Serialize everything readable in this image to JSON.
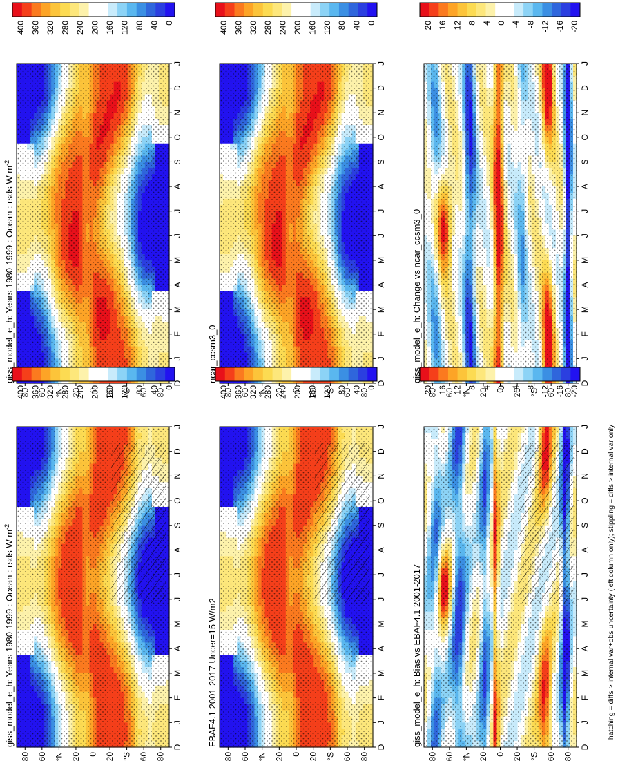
{
  "footnote": "hatching = diffs > internal var+obs uncertainty (left column only); stippling = diffs > internal var only",
  "colors": {
    "abs_scale": [
      "#e8101a",
      "#f53f1a",
      "#fb7a1f",
      "#fda426",
      "#fcc43a",
      "#fcdb52",
      "#fde77b",
      "#fdf2ab",
      "#ffffff",
      "#ffffff",
      "#c8ebfb",
      "#8cd3f6",
      "#5ab7ef",
      "#3b8fe3",
      "#2f66dc",
      "#2b3fe0",
      "#2212f0"
    ],
    "diff_scale": [
      "#e8101a",
      "#f53f1a",
      "#fb7a1f",
      "#fda426",
      "#fcc43a",
      "#fcdb52",
      "#fde77b",
      "#fdf2ab",
      "#ffffff",
      "#ffffff",
      "#c8ebfb",
      "#8cd3f6",
      "#5ab7ef",
      "#3b8fe3",
      "#2f66dc",
      "#2b3fe0",
      "#2212f0"
    ]
  },
  "chart_data": [
    {
      "type": "heatmap",
      "panel": "top-left",
      "title": "giss_model_e_h: Years 1980-1999 : Ocean : rsds W m",
      "title_sup": "-2",
      "x_axis": "latitude",
      "x_tick_labels": [
        "80",
        "60",
        "°N",
        "20",
        "0",
        "20",
        "°S",
        "60",
        "80"
      ],
      "y_axis": "month",
      "y_tick_labels": [
        "D",
        "J",
        "F",
        "M",
        "A",
        "M",
        "J",
        "J",
        "A",
        "S",
        "O",
        "N",
        "D",
        "J"
      ],
      "colorbar_labels": [
        "400",
        "360",
        "320",
        "280",
        "240",
        "200",
        "160",
        "120",
        "80",
        "40",
        "0"
      ],
      "zlim": [
        0,
        420
      ],
      "hatching": true,
      "stippling": true
    },
    {
      "type": "heatmap",
      "panel": "top-right",
      "title": "giss_model_e_h: Years 1980-1999 : Ocean : rsds W m",
      "title_sup": "-2",
      "x_axis": "latitude",
      "x_tick_labels": [
        "80",
        "60",
        "°N",
        "20",
        "0",
        "20",
        "°S",
        "60",
        "80"
      ],
      "y_axis": "month",
      "y_tick_labels": [
        "D",
        "J",
        "F",
        "M",
        "A",
        "M",
        "J",
        "J",
        "A",
        "S",
        "O",
        "N",
        "D",
        "J"
      ],
      "colorbar_labels": [
        "400",
        "360",
        "320",
        "280",
        "240",
        "200",
        "160",
        "120",
        "80",
        "40",
        "0"
      ],
      "zlim": [
        0,
        420
      ],
      "hatching": false,
      "stippling": true
    },
    {
      "type": "heatmap",
      "panel": "middle-left",
      "title": "EBAF4.1 2001-2017 Uncer=15 W/m2",
      "x_axis": "latitude",
      "x_tick_labels": [
        "80",
        "60",
        "°N",
        "20",
        "0",
        "20",
        "°S",
        "60",
        "80"
      ],
      "y_axis": "month",
      "y_tick_labels": [
        "D",
        "J",
        "F",
        "M",
        "A",
        "M",
        "J",
        "J",
        "A",
        "S",
        "O",
        "N",
        "D",
        "J"
      ],
      "colorbar_labels": [
        "400",
        "360",
        "320",
        "280",
        "240",
        "200",
        "160",
        "120",
        "80",
        "40",
        "0"
      ],
      "zlim": [
        0,
        420
      ],
      "hatching": true,
      "stippling": true
    },
    {
      "type": "heatmap",
      "panel": "middle-right",
      "title": "ncar_ccsm3_0",
      "x_axis": "latitude",
      "x_tick_labels": [
        "80",
        "60",
        "°N",
        "20",
        "0",
        "20",
        "°S",
        "60",
        "80"
      ],
      "y_axis": "month",
      "y_tick_labels": [
        "D",
        "J",
        "F",
        "M",
        "A",
        "M",
        "J",
        "J",
        "A",
        "S",
        "O",
        "N",
        "D",
        "J"
      ],
      "colorbar_labels": [
        "400",
        "360",
        "320",
        "280",
        "240",
        "200",
        "160",
        "120",
        "80",
        "40",
        "0"
      ],
      "zlim": [
        0,
        420
      ],
      "hatching": false,
      "stippling": true
    },
    {
      "type": "heatmap",
      "panel": "bottom-left",
      "title": "giss_model_e_h: Bias vs EBAF4.1 2001-2017",
      "x_axis": "latitude",
      "x_tick_labels": [
        "80",
        "60",
        "°N",
        "20",
        "0",
        "20",
        "°S",
        "60",
        "80"
      ],
      "y_axis": "month",
      "y_tick_labels": [
        "D",
        "J",
        "F",
        "M",
        "A",
        "M",
        "J",
        "J",
        "A",
        "S",
        "O",
        "N",
        "D",
        "J"
      ],
      "colorbar_labels": [
        "20",
        "16",
        "12",
        "8",
        "4",
        "0",
        "-4",
        "-8",
        "-12",
        "-16",
        "-20"
      ],
      "zlim": [
        -22,
        22
      ],
      "hatching": true,
      "stippling": true
    },
    {
      "type": "heatmap",
      "panel": "bottom-right",
      "title": "giss_model_e_h: Change vs ncar_ccsm3_0",
      "x_axis": "latitude",
      "x_tick_labels": [
        "80",
        "60",
        "°N",
        "20",
        "0",
        "20",
        "°S",
        "60",
        "80"
      ],
      "y_axis": "month",
      "y_tick_labels": [
        "D",
        "J",
        "F",
        "M",
        "A",
        "M",
        "J",
        "J",
        "A",
        "S",
        "O",
        "N",
        "D",
        "J"
      ],
      "colorbar_labels": [
        "20",
        "16",
        "12",
        "8",
        "4",
        "0",
        "-4",
        "-8",
        "-12",
        "-16",
        "-20"
      ],
      "zlim": [
        -22,
        22
      ],
      "hatching": false,
      "stippling": true
    }
  ]
}
